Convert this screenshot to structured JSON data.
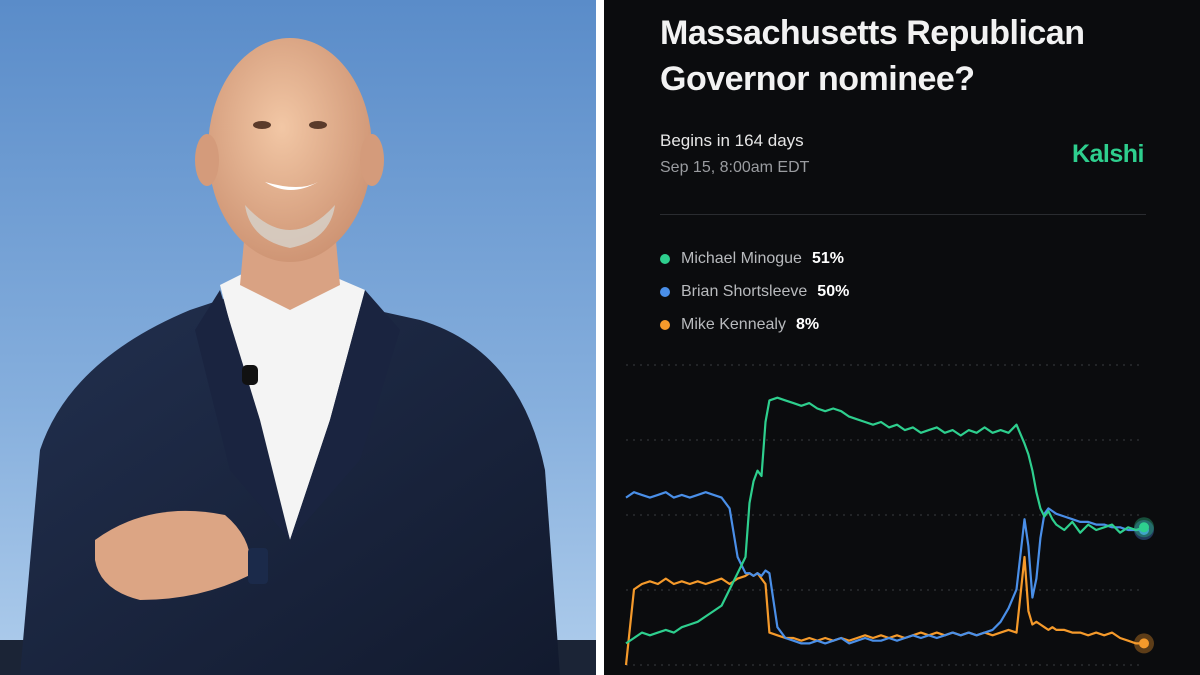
{
  "market": {
    "title": "Massachusetts Republican Governor nominee?",
    "begins": "Begins in 164 days",
    "date": "Sep 15, 8:00am EDT",
    "brand": "Kalshi",
    "brand_color": "#2ecf8e"
  },
  "photo": {
    "description_icon": "person-photo-icon"
  },
  "chart_data": {
    "type": "line",
    "x": [
      0,
      8,
      16,
      24,
      32,
      40,
      48,
      56,
      64,
      72,
      80,
      88,
      96,
      104,
      112,
      120,
      124,
      128,
      132,
      136,
      140,
      144,
      152,
      160,
      168,
      176,
      184,
      192,
      200,
      208,
      216,
      224,
      232,
      240,
      248,
      256,
      264,
      272,
      280,
      288,
      296,
      304,
      312,
      320,
      328,
      336,
      344,
      352,
      360,
      368,
      376,
      384,
      392,
      400,
      404,
      408,
      412,
      416,
      420,
      424,
      428,
      432,
      440,
      448,
      456,
      464,
      472,
      480,
      488,
      496,
      504,
      512,
      520
    ],
    "series": [
      {
        "name": "Michael Minogue",
        "color": "#2ecf8e",
        "values": [
          8,
          10,
          12,
          11,
          12,
          13,
          12,
          14,
          15,
          16,
          18,
          20,
          22,
          28,
          34,
          40,
          60,
          68,
          72,
          70,
          90,
          98,
          99,
          98,
          97,
          96,
          97,
          95,
          94,
          95,
          94,
          92,
          91,
          90,
          89,
          90,
          88,
          89,
          87,
          88,
          86,
          87,
          88,
          86,
          87,
          85,
          87,
          86,
          88,
          86,
          87,
          86,
          89,
          82,
          78,
          72,
          64,
          58,
          55,
          57,
          54,
          52,
          50,
          53,
          49,
          52,
          50,
          51,
          52,
          49,
          51,
          50,
          51
        ]
      },
      {
        "name": "Brian Shortsleeve",
        "color": "#4a8fe8",
        "values": [
          62,
          64,
          63,
          62,
          63,
          64,
          62,
          63,
          62,
          63,
          64,
          63,
          62,
          58,
          40,
          34,
          34,
          33,
          34,
          33,
          35,
          34,
          14,
          10,
          9,
          8,
          8,
          9,
          8,
          9,
          10,
          8,
          9,
          10,
          9,
          9,
          10,
          9,
          10,
          11,
          10,
          11,
          10,
          11,
          12,
          11,
          12,
          11,
          12,
          13,
          16,
          21,
          28,
          54,
          44,
          25,
          32,
          47,
          56,
          58,
          57,
          56,
          55,
          54,
          53,
          53,
          52,
          52,
          51,
          51,
          50,
          50,
          50
        ]
      },
      {
        "name": "Mike Kennealy",
        "color": "#f59a2b",
        "values": [
          0,
          28,
          30,
          31,
          30,
          32,
          30,
          31,
          30,
          31,
          30,
          31,
          32,
          30,
          32,
          33,
          34,
          33,
          34,
          32,
          30,
          12,
          11,
          10,
          10,
          9,
          10,
          9,
          10,
          9,
          10,
          9,
          10,
          11,
          10,
          11,
          10,
          11,
          10,
          11,
          12,
          11,
          12,
          11,
          12,
          11,
          12,
          11,
          12,
          11,
          12,
          13,
          12,
          40,
          20,
          15,
          16,
          15,
          14,
          13,
          14,
          13,
          13,
          12,
          12,
          11,
          12,
          11,
          12,
          10,
          9,
          8,
          8
        ]
      }
    ],
    "ylim": [
      0,
      100
    ]
  }
}
